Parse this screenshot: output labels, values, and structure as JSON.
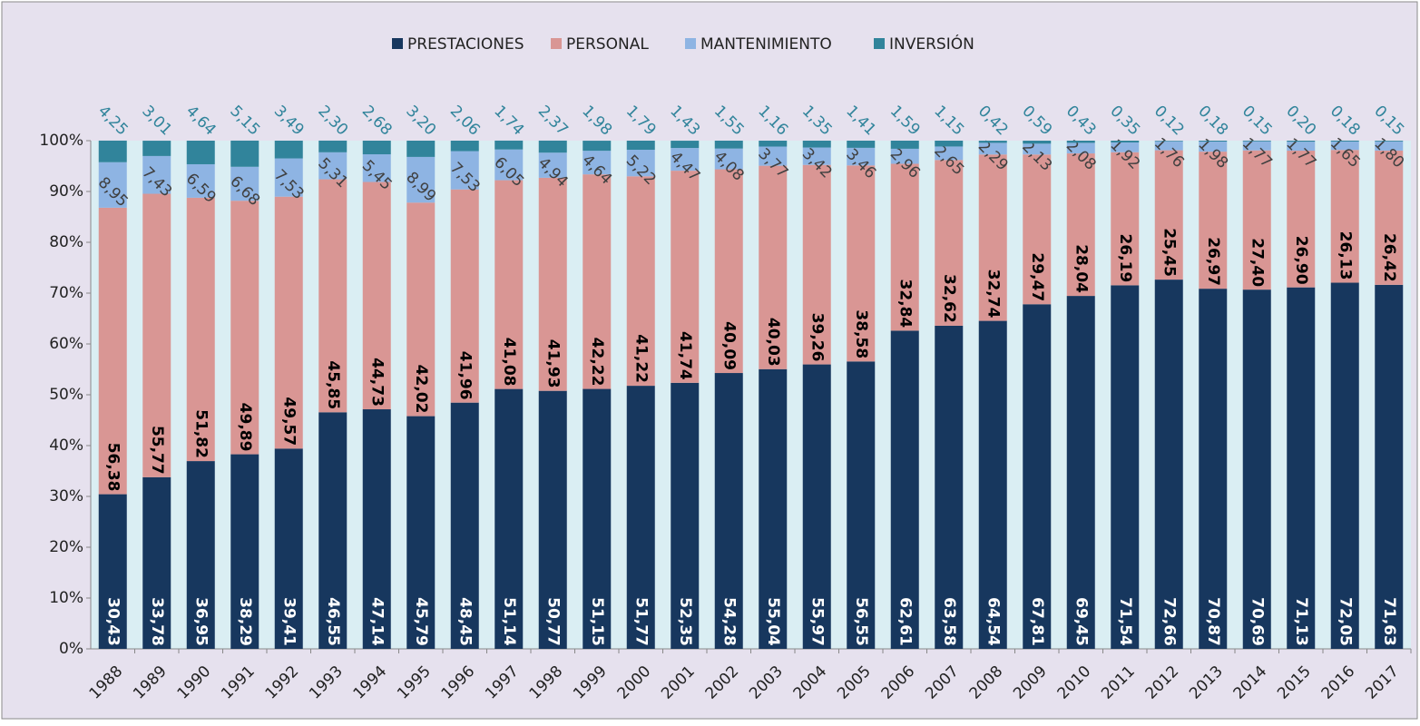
{
  "chart_data": {
    "type": "stacked_bar",
    "categories": [
      "1988",
      "1989",
      "1990",
      "1991",
      "1992",
      "1993",
      "1994",
      "1995",
      "1996",
      "1997",
      "1998",
      "1999",
      "2000",
      "2001",
      "2002",
      "2003",
      "2004",
      "2005",
      "2006",
      "2007",
      "2008",
      "2009",
      "2010",
      "2011",
      "2012",
      "2013",
      "2014",
      "2015",
      "2016",
      "2017"
    ],
    "series": [
      {
        "name": "PRESTACIONES",
        "color": "#17375e",
        "values": [
          30.43,
          33.78,
          36.95,
          38.29,
          39.41,
          46.55,
          47.14,
          45.79,
          48.45,
          51.14,
          50.77,
          51.15,
          51.77,
          52.35,
          54.28,
          55.04,
          55.97,
          56.55,
          62.61,
          63.58,
          64.54,
          67.81,
          69.45,
          71.54,
          72.66,
          70.87,
          70.69,
          71.13,
          72.05,
          71.63
        ],
        "value_labels": [
          "30,43",
          "33,78",
          "36,95",
          "38,29",
          "39,41",
          "46,55",
          "47,14",
          "45,79",
          "48,45",
          "51,14",
          "50,77",
          "51,15",
          "51,77",
          "52,35",
          "54,28",
          "55,04",
          "55,97",
          "56,55",
          "62,61",
          "63,58",
          "64,54",
          "67,81",
          "69,45",
          "71,54",
          "72,66",
          "70,87",
          "70,69",
          "71,13",
          "72,05",
          "71,63"
        ]
      },
      {
        "name": "PERSONAL",
        "color": "#d99694",
        "values": [
          56.38,
          55.77,
          51.82,
          49.89,
          49.57,
          45.85,
          44.73,
          42.02,
          41.96,
          41.08,
          41.93,
          42.22,
          41.22,
          41.74,
          40.09,
          40.03,
          39.26,
          38.58,
          32.84,
          32.62,
          32.74,
          29.47,
          28.04,
          26.19,
          25.45,
          26.97,
          27.4,
          26.9,
          26.13,
          26.42
        ],
        "value_labels": [
          "56,38",
          "55,77",
          "51,82",
          "49,89",
          "49,57",
          "45,85",
          "44,73",
          "42,02",
          "41,96",
          "41,08",
          "41,93",
          "42,22",
          "41,22",
          "41,74",
          "40,09",
          "40,03",
          "39,26",
          "38,58",
          "32,84",
          "32,62",
          "32,74",
          "29,47",
          "28,04",
          "26,19",
          "25,45",
          "26,97",
          "27,40",
          "26,90",
          "26,13",
          "26,42"
        ]
      },
      {
        "name": "MANTENIMIENTO",
        "color": "#8eb4e3",
        "values": [
          8.95,
          7.43,
          6.59,
          6.68,
          7.53,
          5.31,
          5.45,
          8.99,
          7.53,
          6.05,
          4.94,
          4.64,
          5.22,
          4.47,
          4.08,
          3.77,
          3.42,
          3.46,
          2.96,
          2.65,
          2.29,
          2.13,
          2.08,
          1.92,
          1.76,
          1.98,
          1.77,
          1.77,
          1.65,
          1.8
        ],
        "value_labels": [
          "8,95",
          "7,43",
          "6,59",
          "6,68",
          "7,53",
          "5,31",
          "5,45",
          "8,99",
          "7,53",
          "6,05",
          "4,94",
          "4,64",
          "5,22",
          "4,47",
          "4,08",
          "3,77",
          "3,42",
          "3,46",
          "2,96",
          "2,65",
          "2,29",
          "2,13",
          "2,08",
          "1,92",
          "1,76",
          "1,98",
          "1,77",
          "1,77",
          "1,65",
          "1,80"
        ]
      },
      {
        "name": "INVERSIÓN",
        "color": "#31849b",
        "values": [
          4.25,
          3.01,
          4.64,
          5.15,
          3.49,
          2.3,
          2.68,
          3.2,
          2.06,
          1.74,
          2.37,
          1.98,
          1.79,
          1.43,
          1.55,
          1.16,
          1.35,
          1.41,
          1.59,
          1.15,
          0.42,
          0.59,
          0.43,
          0.35,
          0.12,
          0.18,
          0.15,
          0.2,
          0.18,
          0.15
        ],
        "value_labels": [
          "4,25",
          "3,01",
          "4,64",
          "5,15",
          "3,49",
          "2,30",
          "2,68",
          "3,20",
          "2,06",
          "1,74",
          "2,37",
          "1,98",
          "1,79",
          "1,43",
          "1,55",
          "1,16",
          "1,35",
          "1,41",
          "1,59",
          "1,15",
          "0,42",
          "0,59",
          "0,43",
          "0,35",
          "0,12",
          "0,18",
          "0,15",
          "0,20",
          "0,18",
          "0,15"
        ]
      }
    ],
    "ylim": [
      0,
      100
    ],
    "yticks": [
      {
        "value": 0,
        "label": "0%"
      },
      {
        "value": 10,
        "label": "10%"
      },
      {
        "value": 20,
        "label": "20%"
      },
      {
        "value": 30,
        "label": "30%"
      },
      {
        "value": 40,
        "label": "40%"
      },
      {
        "value": 50,
        "label": "50%"
      },
      {
        "value": 60,
        "label": "60%"
      },
      {
        "value": 70,
        "label": "70%"
      },
      {
        "value": 80,
        "label": "80%"
      },
      {
        "value": 90,
        "label": "90%"
      },
      {
        "value": 100,
        "label": "100%"
      }
    ],
    "legend": "top"
  }
}
